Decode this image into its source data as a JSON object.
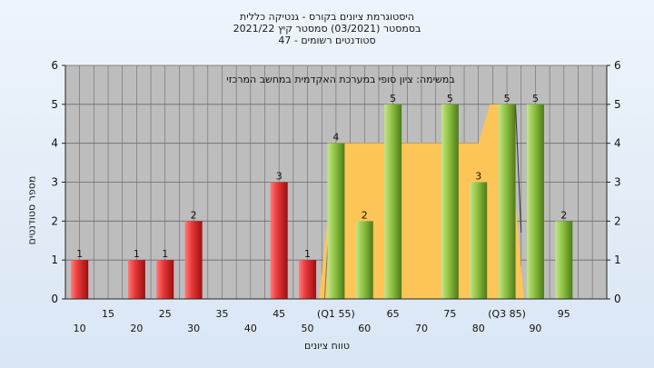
{
  "chart_data": {
    "type": "bar",
    "title_lines": [
      "היסטוגרמת ציונים בקורס - גנטיקה כללית",
      "בסמסטר   (03/2021)  סמסטר קיץ  2021/22",
      "סטודנטים רשומים - 47"
    ],
    "annotation": "במשימה: ציון סופי במערכת האקדמית במחשב המרכזי",
    "ylabel": "מספר סטודנטים",
    "xlabel": "טווח ציונים",
    "ylim": [
      0,
      6
    ],
    "yticks": [
      0,
      1,
      2,
      3,
      4,
      5,
      6
    ],
    "x_ticks_row1": [
      "15",
      "25",
      "35",
      "45",
      "(Q1 55)",
      "65",
      "75",
      "(Q3 85)",
      "95"
    ],
    "x_ticks_row2": [
      "10",
      "20",
      "30",
      "40",
      "50",
      "60",
      "70",
      "80",
      "90"
    ],
    "x": [
      10,
      20,
      25,
      30,
      45,
      50,
      55,
      60,
      65,
      75,
      80,
      85,
      90,
      95
    ],
    "values": [
      1,
      1,
      1,
      2,
      3,
      1,
      4,
      2,
      5,
      5,
      3,
      5,
      5,
      2
    ],
    "colors": {
      "below_pass": "#e83838",
      "above_pass": "#8dc040",
      "iqr_fill": "#fdc458",
      "plot_bg": "#bdbdbd",
      "grid": "#6a6a6a"
    },
    "pass_threshold": 55,
    "quartiles": {
      "q1": 55,
      "q3": 85
    },
    "iqr_band_value": 4
  }
}
